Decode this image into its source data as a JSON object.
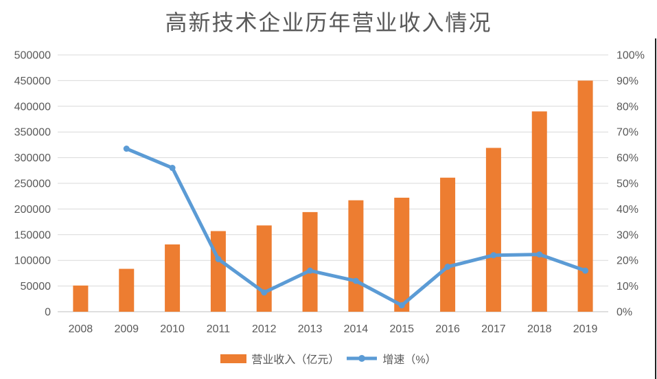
{
  "chart_data": {
    "type": "combo-bar-line",
    "title": "高新技术企业历年营业收入情况",
    "categories": [
      "2008",
      "2009",
      "2010",
      "2011",
      "2012",
      "2013",
      "2014",
      "2015",
      "2016",
      "2017",
      "2018",
      "2019"
    ],
    "series": [
      {
        "name": "营业收入（亿元）",
        "type": "bar",
        "axis": "left",
        "color": "#ED7D31",
        "values": [
          51000,
          83500,
          131000,
          157000,
          168000,
          194000,
          217000,
          222000,
          261000,
          319000,
          390000,
          450000
        ]
      },
      {
        "name": "增速（%）",
        "type": "line",
        "axis": "right",
        "color": "#5B9BD5",
        "values": [
          null,
          63.5,
          56.0,
          20.5,
          7.5,
          16.0,
          12.0,
          2.5,
          17.5,
          22.0,
          22.3,
          16.0
        ]
      }
    ],
    "left_axis": {
      "min": 0,
      "max": 500000,
      "step": 50000,
      "ticks": [
        "0",
        "50000",
        "100000",
        "150000",
        "200000",
        "250000",
        "300000",
        "350000",
        "400000",
        "450000",
        "500000"
      ]
    },
    "right_axis": {
      "min": 0,
      "max": 100,
      "step": 10,
      "ticks": [
        "0%",
        "10%",
        "20%",
        "30%",
        "40%",
        "50%",
        "60%",
        "70%",
        "80%",
        "90%",
        "100%"
      ]
    },
    "grid": true,
    "legend_position": "bottom"
  },
  "colors": {
    "bar": "#ED7D31",
    "line": "#5B9BD5",
    "grid": "#D9D9D9",
    "axis_line": "#BFBFBF",
    "text": "#595959"
  }
}
